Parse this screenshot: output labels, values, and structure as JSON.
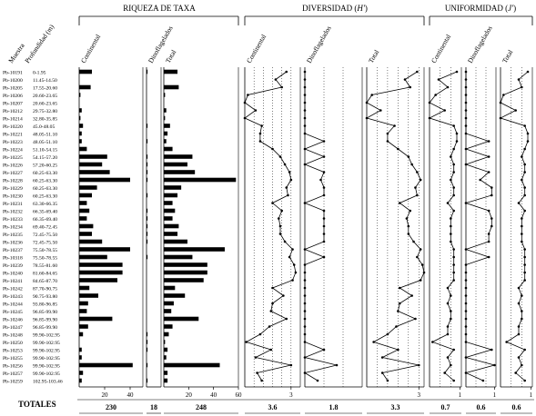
{
  "groups": [
    {
      "title": "RIQUEZA DE TAXA",
      "italic": ""
    },
    {
      "title": "DIVERSIDAD (",
      "italic": "H'",
      "suffix": ")"
    },
    {
      "title": "UNIFORMIDAD (",
      "italic": "J'",
      "suffix": ")"
    }
  ],
  "header": {
    "sample": "Muestra",
    "depth": "Profundidad (m)"
  },
  "totals_label": "TOTALES",
  "samples": [
    [
      "Pb-10191",
      "0-1.95"
    ],
    [
      "Pb-10200",
      "11.45-14.50"
    ],
    [
      "Pb-10205",
      "17.55-20.60"
    ],
    [
      "Pb-10206",
      "20.60-23.65"
    ],
    [
      "Pb-10207",
      "20.60-23.65"
    ],
    [
      "Pb-10212",
      "29.75-32.80"
    ],
    [
      "Pb-10214",
      "32.80-35.85"
    ],
    [
      "Pb-10220",
      "45.0-48.05"
    ],
    [
      "Pb-10221",
      "48.05-51.10"
    ],
    [
      "Pb-10223",
      "48.05-51.10"
    ],
    [
      "Pb-10224",
      "51.10-54.15"
    ],
    [
      "Pb-10225",
      "54.15-57.20"
    ],
    [
      "Pb-10226",
      "57.20-60.25"
    ],
    [
      "Pb-10227",
      "60.25-63.30"
    ],
    [
      "Pb-10228",
      "60.25-63.30"
    ],
    [
      "Pb-10229",
      "60.25-63.30"
    ],
    [
      "Pb-10230",
      "60.25-63.30"
    ],
    [
      "Pb-10231",
      "63.30-66.35"
    ],
    [
      "Pb-10232",
      "66.35-69.40"
    ],
    [
      "Pb-10233",
      "66.35-69.40"
    ],
    [
      "Pb-10234",
      "69.40-72.45"
    ],
    [
      "Pb-10235",
      "72.45-75.50"
    ],
    [
      "Pb-10236",
      "72.45-75.50"
    ],
    [
      "Pb-10237",
      "75.50-78.55"
    ],
    [
      "Pb-10318",
      "75.50-78.55"
    ],
    [
      "Pb-10239",
      "78.55-81.60"
    ],
    [
      "Pb-10240",
      "81.60-84.65"
    ],
    [
      "Pb-10241",
      "84.65-87.70"
    ],
    [
      "Pb-10242",
      "87.70-90.75"
    ],
    [
      "Pb-10243",
      "90.75-93.80"
    ],
    [
      "Pb-10244",
      "93.80-96.85"
    ],
    [
      "Pb-10245",
      "96.85-99.90"
    ],
    [
      "Pb-10246",
      "96.85-99.90"
    ],
    [
      "Pb-10247",
      "96.85-99.90"
    ],
    [
      "Pb-10248",
      "99.90-102.95"
    ],
    [
      "Pb-10250",
      "99.90-102.95"
    ],
    [
      "Pb-10253",
      "99.90-102.95"
    ],
    [
      "Pb-10255",
      "99.90-102.95"
    ],
    [
      "Pb-10256",
      "99.90-102.95"
    ],
    [
      "Pb-10257",
      "99.90-102.95"
    ],
    [
      "Pb-10259",
      "102.95-103.46"
    ]
  ],
  "chart_data": [
    {
      "type": "bar",
      "orientation": "horizontal",
      "label": "Continental",
      "total": "230",
      "xlim": [
        0,
        50
      ],
      "ticks": [
        20,
        40
      ],
      "values": [
        10,
        0,
        9,
        1,
        0,
        2,
        1,
        3,
        2,
        2,
        6,
        22,
        18,
        24,
        40,
        14,
        10,
        6,
        8,
        6,
        11,
        10,
        18,
        40,
        22,
        34,
        34,
        30,
        8,
        15,
        7,
        6,
        26,
        7,
        3,
        0,
        2,
        2,
        42,
        3,
        2
      ]
    },
    {
      "type": "bar",
      "orientation": "horizontal",
      "label": "Dinoflagelados",
      "total": "18",
      "xlim": [
        0,
        14
      ],
      "ticks": [],
      "values": [
        1,
        0,
        0,
        0,
        0,
        0,
        0,
        1,
        0,
        1,
        0,
        1,
        1,
        1,
        1,
        0,
        1,
        0,
        1,
        1,
        1,
        1,
        1,
        0,
        1,
        0,
        0,
        0,
        0,
        0,
        0,
        0,
        0,
        0,
        1,
        1,
        1,
        0,
        1,
        0,
        1
      ]
    },
    {
      "type": "bar",
      "orientation": "horizontal",
      "label": "Total",
      "total": "248",
      "xlim": [
        0,
        60
      ],
      "ticks": [
        20,
        40,
        60
      ],
      "values": [
        11,
        0,
        12,
        1,
        0,
        2,
        1,
        5,
        3,
        2,
        7,
        23,
        19,
        25,
        58,
        14,
        11,
        7,
        9,
        7,
        12,
        11,
        19,
        49,
        23,
        35,
        35,
        32,
        9,
        17,
        8,
        6,
        28,
        7,
        4,
        1,
        3,
        2,
        45,
        3,
        3
      ]
    },
    {
      "type": "line",
      "label": "Continental",
      "total": "3.6",
      "xlim": [
        0,
        3.6
      ],
      "ticks": [
        3
      ],
      "gridlines": [
        0.6,
        1.2,
        1.8,
        2.4,
        3.0
      ],
      "values": [
        2.7,
        2.0,
        2.4,
        0.2,
        0,
        0.7,
        0,
        1.1,
        1.0,
        1.0,
        1.8,
        2.3,
        2.6,
        2.9,
        3.0,
        2.7,
        2.8,
        1.8,
        2.4,
        2.2,
        2.3,
        2.3,
        2.6,
        3.1,
        2.9,
        3.2,
        3.3,
        3.1,
        1.8,
        2.5,
        1.8,
        1.7,
        2.7,
        1.6,
        1.0,
        0.1,
        1.7,
        0.7,
        3.0,
        0.8,
        1.1
      ]
    },
    {
      "type": "line",
      "label": "Dinoflagelados",
      "total": "1.8",
      "xlim": [
        0,
        1.8
      ],
      "ticks": [],
      "gridlines": [
        0.6,
        1.2
      ],
      "values": [
        0,
        0,
        0,
        0,
        0,
        0,
        0,
        0,
        0,
        0.6,
        0,
        0.6,
        0,
        0.6,
        0.5,
        0.6,
        0.6,
        0,
        0.6,
        0.6,
        0.6,
        0.6,
        0.6,
        0,
        0.6,
        0,
        0,
        0,
        0,
        0,
        0,
        0,
        0,
        0,
        0,
        0,
        0.6,
        0,
        1.0,
        0,
        0.4
      ]
    },
    {
      "type": "line",
      "label": "Total",
      "total": "3.3",
      "xlim": [
        0,
        3.3
      ],
      "ticks": [
        3
      ],
      "gridlines": [
        0.6,
        1.2,
        1.8,
        2.4,
        3.0
      ],
      "values": [
        2.9,
        2.2,
        2.5,
        0.3,
        0,
        0.8,
        0,
        1.6,
        1.2,
        1.2,
        1.8,
        2.4,
        2.6,
        2.9,
        3.1,
        2.8,
        2.9,
        1.9,
        2.5,
        2.3,
        2.4,
        2.4,
        2.7,
        3.1,
        2.9,
        3.2,
        3.3,
        3.1,
        1.9,
        2.6,
        1.9,
        1.8,
        2.8,
        1.7,
        1.2,
        0.4,
        1.8,
        0.9,
        3.0,
        0.9,
        1.2
      ]
    },
    {
      "type": "line",
      "label": "Continental",
      "total": "0.7",
      "xlim": [
        0,
        1.05
      ],
      "ticks": [
        1
      ],
      "gridlines": [
        0.35,
        0.7
      ],
      "values": [
        0.9,
        0.3,
        0.6,
        0.2,
        0,
        0.5,
        0,
        0.8,
        0.9,
        0.9,
        0.8,
        0.7,
        0.8,
        0.8,
        0.7,
        0.8,
        0.8,
        0.6,
        0.8,
        0.7,
        0.7,
        0.7,
        0.7,
        0.8,
        0.8,
        0.8,
        0.8,
        0.8,
        0.6,
        0.7,
        0.6,
        0.7,
        0.7,
        0.6,
        0.6,
        0.1,
        0.8,
        0.6,
        0.7,
        0.5,
        0.8
      ]
    },
    {
      "type": "line",
      "label": "Dinoflagelados",
      "total": "0.6",
      "xlim": [
        0,
        1.05
      ],
      "ticks": [
        1
      ],
      "gridlines": [
        0.35,
        0.7
      ],
      "values": [
        0,
        0,
        0,
        0,
        0,
        0,
        0,
        0,
        0,
        0.8,
        0,
        0.8,
        0,
        0.8,
        0.5,
        0.9,
        0.9,
        0,
        0.8,
        0.9,
        0.9,
        0.8,
        0.8,
        0,
        0.8,
        0,
        0,
        0,
        0,
        0,
        0,
        0,
        0,
        0,
        0,
        0,
        0.9,
        0,
        1.0,
        0,
        0.6
      ]
    },
    {
      "type": "line",
      "label": "Total",
      "total": "0.6",
      "xlim": [
        0,
        1.05
      ],
      "ticks": [
        1
      ],
      "gridlines": [
        0.35,
        0.7
      ],
      "values": [
        0.9,
        0.6,
        0.7,
        0.1,
        0,
        0.5,
        0,
        0.8,
        0.9,
        0.9,
        0.8,
        0.7,
        0.8,
        0.8,
        0.7,
        0.8,
        0.8,
        0.6,
        0.8,
        0.7,
        0.7,
        0.7,
        0.7,
        0.8,
        0.8,
        0.8,
        0.8,
        0.8,
        0.6,
        0.7,
        0.6,
        0.7,
        0.7,
        0.6,
        0.6,
        0.2,
        0.8,
        0.6,
        0.7,
        0.5,
        0.8
      ]
    }
  ]
}
